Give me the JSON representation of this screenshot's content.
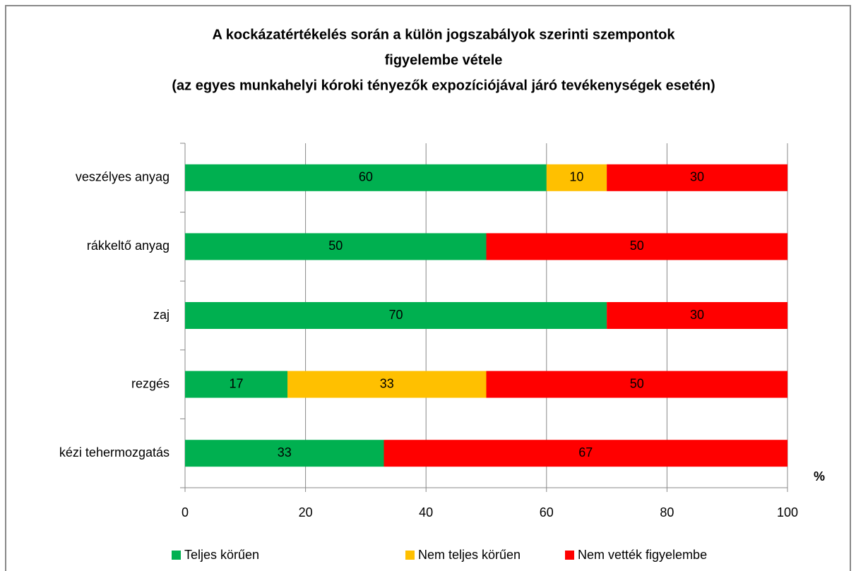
{
  "chart_data": {
    "type": "stacked-bar-horizontal",
    "title": [
      "A kockázatértékelés során a külön jogszabályok szerinti szempontok",
      "figyelembe vétele"
    ],
    "subtitle": "(az egyes munkahelyi kóroki tényezők expozíciójával járó tevékenységek esetén)",
    "categories": [
      "veszélyes anyag",
      "rákkeltő anyag",
      "zaj",
      "rezgés",
      "kézi tehermozgatás"
    ],
    "series": [
      {
        "name": "Teljes körűen",
        "color": "#00b050",
        "values": [
          60,
          50,
          70,
          17,
          33
        ]
      },
      {
        "name": "Nem teljes körűen",
        "color": "#ffc000",
        "values": [
          10,
          0,
          0,
          33,
          0
        ]
      },
      {
        "name": "Nem vették figyelembe",
        "color": "#ff0000",
        "values": [
          30,
          50,
          30,
          50,
          67
        ]
      }
    ],
    "xlabel": "%",
    "xlim": [
      0,
      100
    ],
    "xticks": [
      0,
      20,
      40,
      60,
      80,
      100
    ],
    "grid": true,
    "legend": "bottom"
  }
}
